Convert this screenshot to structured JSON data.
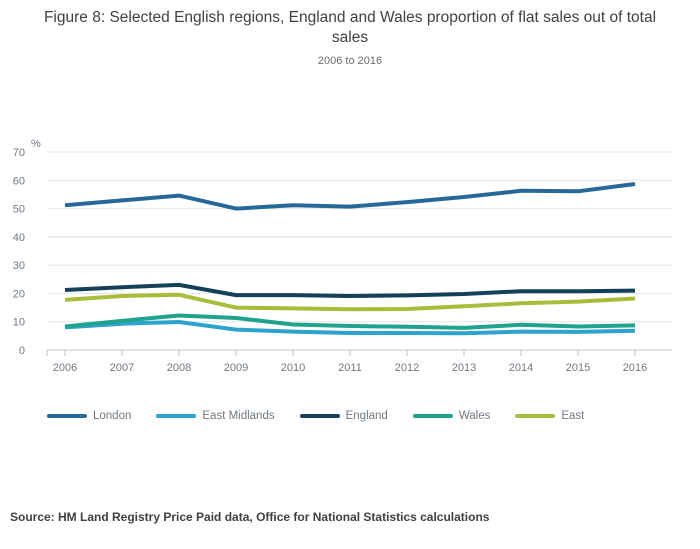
{
  "figure": {
    "title": "Figure 8: Selected English regions, England and Wales proportion of flat sales out of total sales",
    "subtitle": "2006 to 2016",
    "source": "Source: HM Land Registry Price Paid data, Office for National Statistics calculations"
  },
  "chart_data": {
    "type": "line",
    "x": [
      2006,
      2007,
      2008,
      2009,
      2010,
      2011,
      2012,
      2013,
      2014,
      2015,
      2016
    ],
    "unit_label": "%",
    "ylim": [
      0,
      70
    ],
    "yticks": [
      0,
      10,
      20,
      30,
      40,
      50,
      60,
      70
    ],
    "grid": true,
    "legend_position": "bottom",
    "series": [
      {
        "name": "London",
        "color": "#266999",
        "values": [
          51.2,
          52.9,
          54.6,
          50.0,
          51.2,
          50.7,
          52.3,
          54.1,
          56.3,
          56.1,
          58.7
        ]
      },
      {
        "name": "East Midlands",
        "color": "#2ea3cd",
        "values": [
          8.0,
          9.3,
          9.9,
          7.2,
          6.5,
          6.0,
          6.0,
          5.9,
          6.5,
          6.4,
          6.8
        ]
      },
      {
        "name": "England",
        "color": "#15405a",
        "values": [
          21.2,
          22.2,
          23.0,
          19.4,
          19.4,
          19.1,
          19.3,
          19.8,
          20.8,
          20.8,
          21.0
        ]
      },
      {
        "name": "Wales",
        "color": "#20a38e",
        "values": [
          8.3,
          10.3,
          12.2,
          11.3,
          9.0,
          8.5,
          8.2,
          7.8,
          8.9,
          8.3,
          8.7
        ]
      },
      {
        "name": "East",
        "color": "#a9bd3b",
        "values": [
          17.7,
          19.1,
          19.5,
          15.0,
          14.7,
          14.4,
          14.5,
          15.5,
          16.5,
          17.1,
          18.2
        ]
      }
    ]
  },
  "colors": {
    "grid": "#e4e4e4",
    "axis": "#b9c6d2",
    "tick_label": "#6f7983",
    "title": "#414042",
    "subtitle": "#6d6d6d",
    "legend_label": "#6f7983",
    "source": "#414042"
  }
}
